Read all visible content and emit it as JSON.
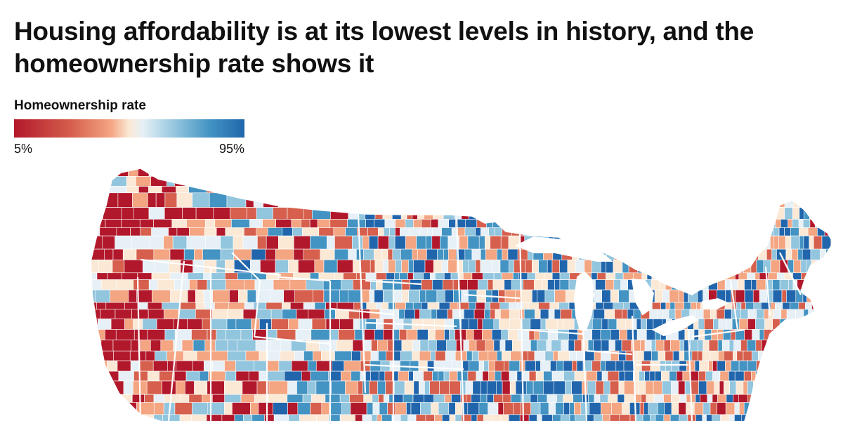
{
  "chart": {
    "title": "Housing affordability is at its lowest levels in history, and the homeownership rate shows it"
  },
  "legend": {
    "title": "Homeownership rate",
    "min_label": "5%",
    "max_label": "95%",
    "colors": [
      "#b2182b",
      "#d6604d",
      "#f4a582",
      "#fbe9d6",
      "#e6f0f6",
      "#92c5de",
      "#4393c3",
      "#2166ac"
    ]
  },
  "map": {
    "subject": "US counties choropleth of homeownership rate",
    "scale_min": 5,
    "scale_max": 95
  }
}
